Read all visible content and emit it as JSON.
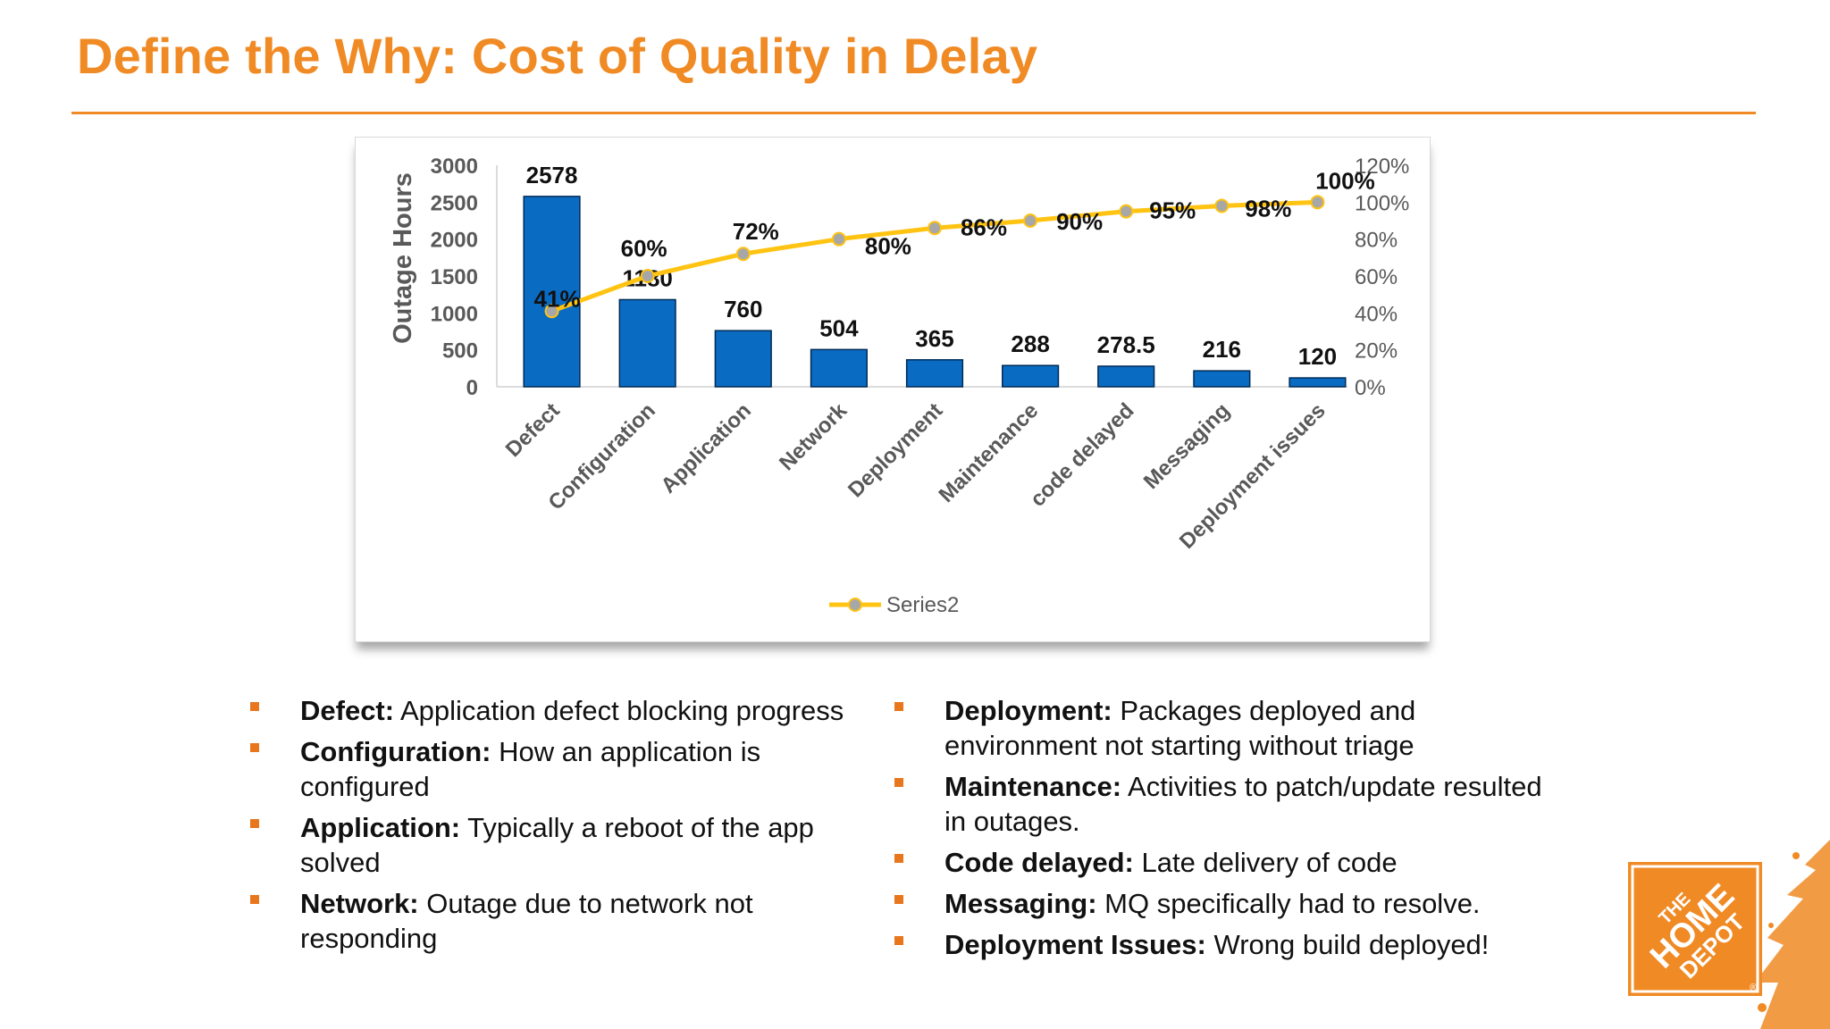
{
  "colors": {
    "accent": "#f08a24",
    "bar": "#0a6bc3",
    "bar_outline": "#002b55",
    "line": "#ffc312",
    "marker": "#a7a7a7",
    "axis_text": "#595959",
    "bullet": "#e8761d"
  },
  "slide": {
    "title": "Define the Why: Cost of Quality in Delay"
  },
  "chart_data": {
    "type": "bar",
    "categories": [
      "Defect",
      "Configuration",
      "Application",
      "Network",
      "Deployment",
      "Maintenance",
      "code delayed",
      "Messaging",
      "Deployment issues"
    ],
    "series": [
      {
        "type": "bar",
        "axis": "left",
        "values": [
          2578,
          1180,
          760,
          504,
          365,
          288,
          278.5,
          216,
          120
        ],
        "labels": [
          "2578",
          "1180",
          "760",
          "504",
          "365",
          "288",
          "278.5",
          "216",
          "120"
        ]
      },
      {
        "type": "line",
        "axis": "right",
        "name": "Series2",
        "values": [
          0.41,
          0.6,
          0.72,
          0.8,
          0.86,
          0.9,
          0.95,
          0.98,
          1.0
        ],
        "labels": [
          "41%",
          "60%",
          "72%",
          "80%",
          "86%",
          "90%",
          "95%",
          "98%",
          "100%"
        ]
      }
    ],
    "ylabel": "Outage Hours",
    "ylim": [
      0,
      3000
    ],
    "yticks": [
      "0",
      "500",
      "1000",
      "1500",
      "2000",
      "2500",
      "3000"
    ],
    "y2lim": [
      0,
      1.2
    ],
    "y2ticks": [
      "0%",
      "20%",
      "40%",
      "60%",
      "80%",
      "100%",
      "120%"
    ],
    "grid": false,
    "legend": {
      "position": "bottom",
      "entries": [
        "Series2"
      ]
    }
  },
  "definitions": {
    "left": [
      {
        "term": "Defect:",
        "text": "Application defect blocking progress"
      },
      {
        "term": "Configuration:",
        "text": "How an application is configured"
      },
      {
        "term": "Application:",
        "text": "Typically a reboot of the app solved"
      },
      {
        "term": "Network:",
        "text": "Outage due to network not responding"
      }
    ],
    "right": [
      {
        "term": "Deployment:",
        "text": "Packages deployed and environment not starting without triage"
      },
      {
        "term": "Maintenance:",
        "text": "Activities to patch/update resulted in outages."
      },
      {
        "term": "Code delayed:",
        "text": "Late delivery of code"
      },
      {
        "term": "Messaging:",
        "text": "MQ specifically had to resolve."
      },
      {
        "term": "Deployment Issues:",
        "text": "Wrong build deployed!"
      }
    ]
  },
  "logo": {
    "words": [
      "THE",
      "HOME",
      "DEPOT"
    ],
    "mark": "®"
  }
}
